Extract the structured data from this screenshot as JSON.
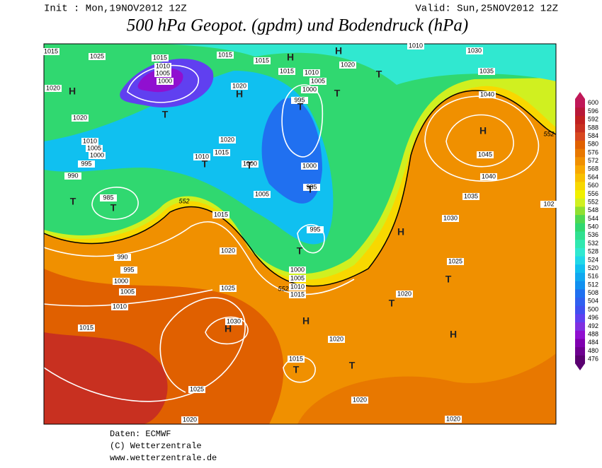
{
  "header": {
    "init": "Init : Mon,19NOV2012 12Z",
    "valid": "Valid: Sun,25NOV2012 12Z",
    "title": "500 hPa Geopot. (gpdm) und Bodendruck (hPa)"
  },
  "map": {
    "pressure_labels": [
      1015,
      1025,
      1015,
      1010,
      1005,
      1000,
      1015,
      1015,
      1015,
      1010,
      1005,
      1000,
      995,
      1020,
      1010,
      1030,
      1035,
      1040,
      1020,
      1020,
      1020,
      1010,
      1005,
      1000,
      995,
      990,
      985,
      1020,
      1015,
      1010,
      1000,
      1000,
      1005,
      985,
      995,
      1015,
      1020,
      990,
      995,
      1000,
      1005,
      1010,
      1015,
      1025,
      1030,
      1000,
      1005,
      1010,
      1015,
      1045,
      1040,
      1035,
      1030,
      1025,
      1020,
      1020,
      1015,
      1025,
      1020,
      1020,
      1020,
      102
    ],
    "geopotential_labels": [
      552,
      552,
      552
    ],
    "high_labels": [
      "H",
      "H",
      "H",
      "H",
      "H",
      "H",
      "H",
      "H",
      "H"
    ],
    "low_labels": [
      "T",
      "T",
      "T",
      "T",
      "T",
      "T",
      "T",
      "T",
      "T",
      "T",
      "T",
      "T",
      "T",
      "T"
    ]
  },
  "colorbar": {
    "levels": [
      476,
      480,
      484,
      488,
      492,
      496,
      500,
      504,
      508,
      512,
      516,
      520,
      524,
      528,
      532,
      536,
      540,
      544,
      548,
      552,
      556,
      560,
      564,
      568,
      572,
      576,
      580,
      584,
      588,
      592,
      596,
      600
    ],
    "colors": [
      "#5a0070",
      "#6e0090",
      "#8000b0",
      "#9010d0",
      "#8030e0",
      "#6040f0",
      "#4050f0",
      "#3060f0",
      "#2070f0",
      "#1090f0",
      "#10a8f0",
      "#10c0f0",
      "#20d8e8",
      "#30e8d0",
      "#30e8b0",
      "#30e090",
      "#30d870",
      "#50d850",
      "#90e030",
      "#d0f020",
      "#f0f000",
      "#f8d800",
      "#f8c000",
      "#f8a800",
      "#f09000",
      "#e87800",
      "#e06000",
      "#d84820",
      "#c83020",
      "#c02020",
      "#b81838",
      "#c01858"
    ]
  },
  "footer": {
    "source": "Daten: ECMWF",
    "copyright": "(C) Wetterzentrale",
    "url": "www.wetterzentrale.de"
  }
}
